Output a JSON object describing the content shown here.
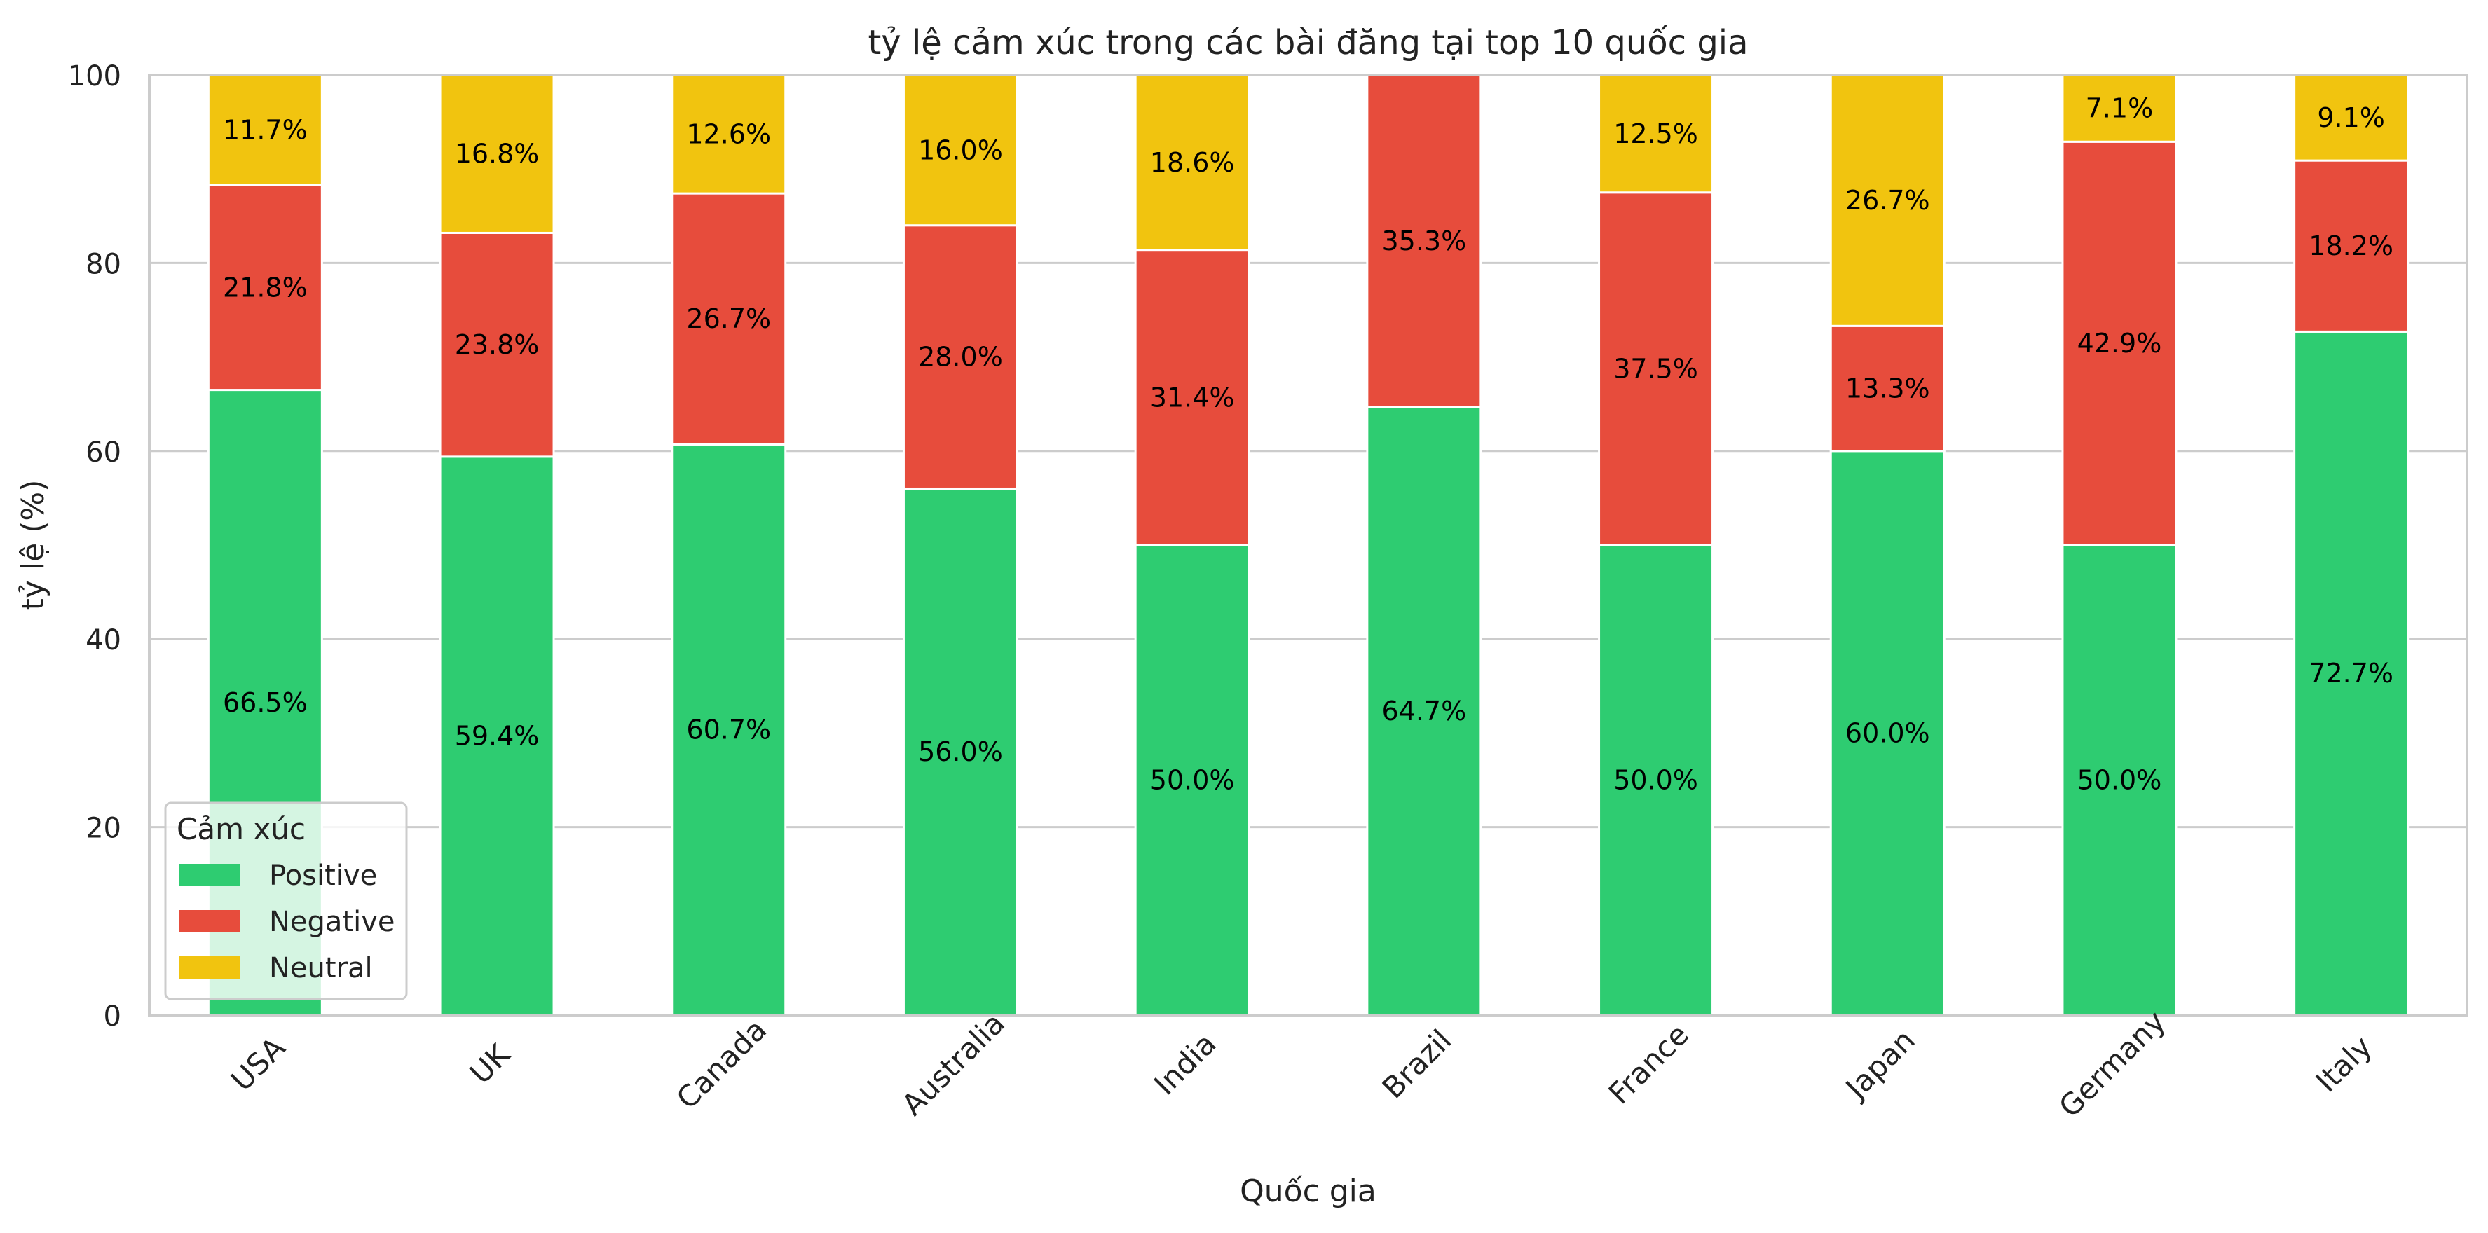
{
  "chart_data": {
    "type": "bar",
    "stacked": true,
    "title": "tỷ lệ cảm xúc trong các bài đăng tại top 10 quốc gia",
    "xlabel": "Quốc gia",
    "ylabel": "tỷ lệ (%)",
    "ylim": [
      0,
      100
    ],
    "yticks": [
      "0",
      "20",
      "40",
      "60",
      "80",
      "100"
    ],
    "grid": true,
    "legend_title": "Cảm xúc",
    "legend_position": "lower-left",
    "categories": [
      "USA",
      "UK",
      "Canada",
      "Australia",
      "India",
      "Brazil",
      "France",
      "Japan",
      "Germany",
      "Italy"
    ],
    "series": [
      {
        "name": "Positive",
        "color": "#2ecc71",
        "values": [
          66.5,
          59.4,
          60.7,
          56.0,
          50.0,
          64.7,
          50.0,
          60.0,
          50.0,
          72.7
        ],
        "labels": [
          "66.5%",
          "59.4%",
          "60.7%",
          "56.0%",
          "50.0%",
          "64.7%",
          "50.0%",
          "60.0%",
          "50.0%",
          "72.7%"
        ]
      },
      {
        "name": "Negative",
        "color": "#e74c3c",
        "values": [
          21.8,
          23.8,
          26.7,
          28.0,
          31.4,
          35.3,
          37.5,
          13.3,
          42.9,
          18.2
        ],
        "labels": [
          "21.8%",
          "23.8%",
          "26.7%",
          "28.0%",
          "31.4%",
          "35.3%",
          "37.5%",
          "13.3%",
          "42.9%",
          "18.2%"
        ]
      },
      {
        "name": "Neutral",
        "color": "#f1c40f",
        "values": [
          11.7,
          16.8,
          12.6,
          16.0,
          18.6,
          0.0,
          12.5,
          26.7,
          7.1,
          9.1
        ],
        "labels": [
          "11.7%",
          "16.8%",
          "12.6%",
          "16.0%",
          "18.6%",
          "",
          "12.5%",
          "26.7%",
          "7.1%",
          "9.1%"
        ]
      }
    ]
  }
}
